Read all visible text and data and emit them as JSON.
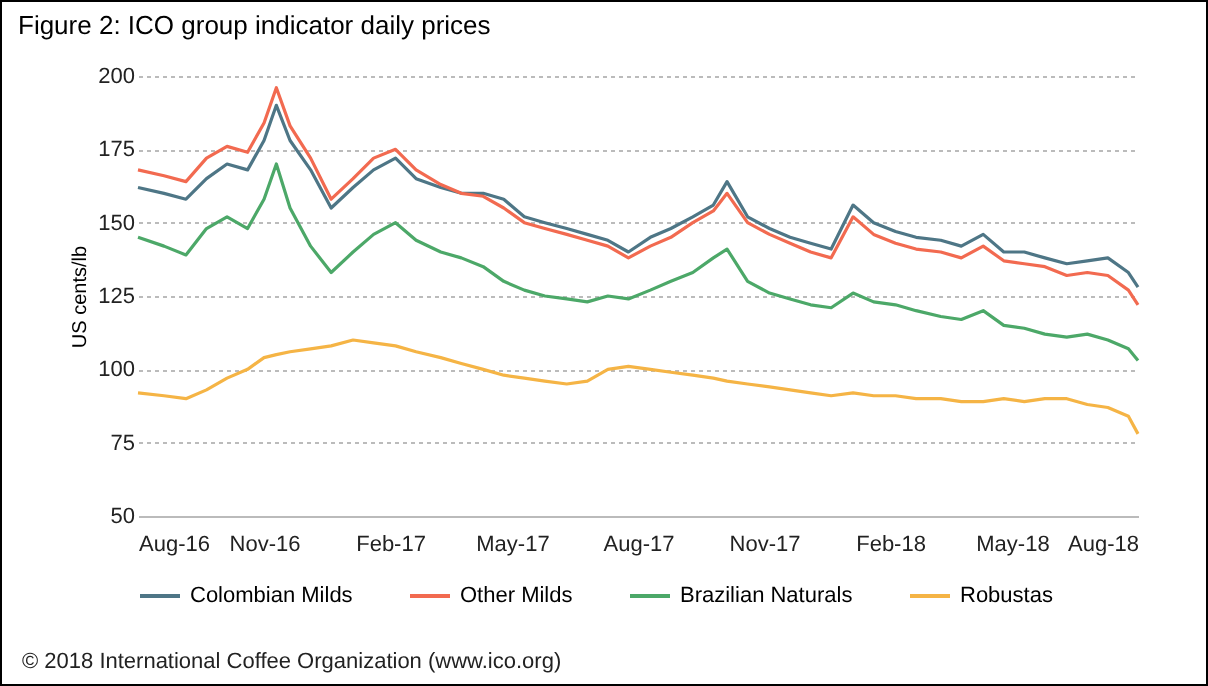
{
  "chart_data": {
    "type": "line",
    "title": "Figure 2: ICO group indicator daily prices",
    "ylabel": "US cents/lb",
    "x": [
      "2016-08-01",
      "2016-08-20",
      "2016-09-05",
      "2016-09-20",
      "2016-10-05",
      "2016-10-20",
      "2016-11-01",
      "2016-11-10",
      "2016-11-20",
      "2016-12-05",
      "2016-12-20",
      "2017-01-05",
      "2017-01-20",
      "2017-02-05",
      "2017-02-20",
      "2017-03-10",
      "2017-03-25",
      "2017-04-10",
      "2017-04-25",
      "2017-05-10",
      "2017-05-25",
      "2017-06-10",
      "2017-06-25",
      "2017-07-10",
      "2017-07-25",
      "2017-08-10",
      "2017-08-25",
      "2017-09-10",
      "2017-09-25",
      "2017-10-05",
      "2017-10-20",
      "2017-11-05",
      "2017-11-20",
      "2017-12-05",
      "2017-12-20",
      "2018-01-05",
      "2018-01-20",
      "2018-02-05",
      "2018-02-20",
      "2018-03-10",
      "2018-03-25",
      "2018-04-10",
      "2018-04-25",
      "2018-05-10",
      "2018-05-25",
      "2018-06-10",
      "2018-06-25",
      "2018-07-10",
      "2018-07-25",
      "2018-08-01"
    ],
    "series": [
      {
        "name": "Colombian Milds",
        "color": "#4e7686",
        "values": [
          162,
          160,
          158,
          165,
          170,
          168,
          178,
          190,
          178,
          168,
          155,
          162,
          168,
          172,
          165,
          162,
          160,
          160,
          158,
          152,
          150,
          148,
          146,
          144,
          140,
          145,
          148,
          152,
          156,
          164,
          152,
          148,
          145,
          143,
          141,
          156,
          150,
          147,
          145,
          144,
          142,
          146,
          140,
          140,
          138,
          136,
          137,
          138,
          133,
          128
        ]
      },
      {
        "name": "Other Milds",
        "color": "#f26a50",
        "values": [
          168,
          166,
          164,
          172,
          176,
          174,
          184,
          196,
          183,
          172,
          158,
          165,
          172,
          175,
          168,
          163,
          160,
          159,
          155,
          150,
          148,
          146,
          144,
          142,
          138,
          142,
          145,
          150,
          154,
          160,
          150,
          146,
          143,
          140,
          138,
          152,
          146,
          143,
          141,
          140,
          138,
          142,
          137,
          136,
          135,
          132,
          133,
          132,
          127,
          122
        ]
      },
      {
        "name": "Brazilian Naturals",
        "color": "#4ca868",
        "values": [
          145,
          142,
          139,
          148,
          152,
          148,
          158,
          170,
          155,
          142,
          133,
          140,
          146,
          150,
          144,
          140,
          138,
          135,
          130,
          127,
          125,
          124,
          123,
          125,
          124,
          127,
          130,
          133,
          138,
          141,
          130,
          126,
          124,
          122,
          121,
          126,
          123,
          122,
          120,
          118,
          117,
          120,
          115,
          114,
          112,
          111,
          112,
          110,
          107,
          103
        ]
      },
      {
        "name": "Robustas",
        "color": "#f5b445",
        "values": [
          92,
          91,
          90,
          93,
          97,
          100,
          104,
          105,
          106,
          107,
          108,
          110,
          109,
          108,
          106,
          104,
          102,
          100,
          98,
          97,
          96,
          95,
          96,
          100,
          101,
          100,
          99,
          98,
          97,
          96,
          95,
          94,
          93,
          92,
          91,
          92,
          91,
          91,
          90,
          90,
          89,
          89,
          90,
          89,
          90,
          90,
          88,
          87,
          84,
          78
        ]
      }
    ],
    "xlim": [
      "2016-08-01",
      "2018-08-01"
    ],
    "xticks": [
      {
        "value": "2016-08-01",
        "label": "Aug-16"
      },
      {
        "value": "2016-11-01",
        "label": "Nov-16"
      },
      {
        "value": "2017-02-01",
        "label": "Feb-17"
      },
      {
        "value": "2017-05-01",
        "label": "May-17"
      },
      {
        "value": "2017-08-01",
        "label": "Aug-17"
      },
      {
        "value": "2017-11-01",
        "label": "Nov-17"
      },
      {
        "value": "2018-02-01",
        "label": "Feb-18"
      },
      {
        "value": "2018-05-01",
        "label": "May-18"
      },
      {
        "value": "2018-08-01",
        "label": "Aug-18"
      }
    ],
    "ylim": [
      50,
      200
    ],
    "yticks": [
      50,
      75,
      100,
      125,
      150,
      175,
      200
    ],
    "grid": "y",
    "legend": "bottom",
    "annotations": [
      "© 2018 International Coffee Organization (www.ico.org)"
    ]
  }
}
